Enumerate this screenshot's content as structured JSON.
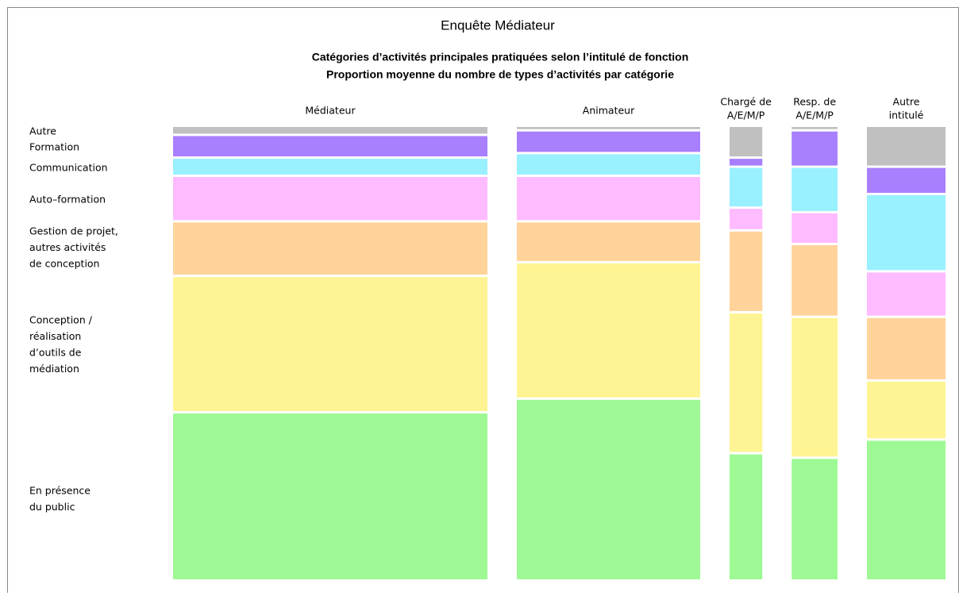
{
  "chart_data": {
    "type": "mosaic",
    "title": "Enquête Médiateur",
    "subtitle": [
      "Catégories d’activités principales pratiquées selon l’intitulé de fonction",
      "Proportion moyenne du nombre de types d’activités par catégorie"
    ],
    "categories": [
      [
        "Médiateur"
      ],
      [
        "Animateur"
      ],
      [
        "Chargé de",
        "A/E/M/P"
      ],
      [
        "Resp. de",
        "A/E/M/P"
      ],
      [
        "Autre",
        "intitulé"
      ]
    ],
    "widths": [
      48,
      28,
      5,
      7,
      12
    ],
    "ylim": [
      0,
      100
    ],
    "series": [
      {
        "name": [
          "Autre"
        ],
        "color": "#c0c0c0",
        "values": [
          2,
          1,
          7,
          1,
          9
        ]
      },
      {
        "name": [
          "Formation"
        ],
        "color": "#a77fff",
        "values": [
          5,
          5,
          2,
          8,
          6
        ]
      },
      {
        "name": [
          "Communication"
        ],
        "color": "#99f0ff",
        "values": [
          4,
          5,
          9,
          10,
          17
        ]
      },
      {
        "name": [
          "Auto–formation"
        ],
        "color": "#ffbbff",
        "values": [
          10,
          10,
          5,
          7,
          10
        ]
      },
      {
        "name": [
          "Gestion de projet,",
          "autres activités",
          "de conception"
        ],
        "color": "#ffd39a",
        "values": [
          12,
          9,
          18,
          16,
          14
        ]
      },
      {
        "name": [
          "Conception /",
          "réalisation",
          "d’outils de",
          "médiation"
        ],
        "color": "#fff494",
        "values": [
          30,
          30,
          31,
          31,
          13
        ]
      },
      {
        "name": [
          "En présence",
          "du public"
        ],
        "color": "#9ef994",
        "values": [
          37,
          40,
          28,
          27,
          31
        ]
      }
    ]
  }
}
